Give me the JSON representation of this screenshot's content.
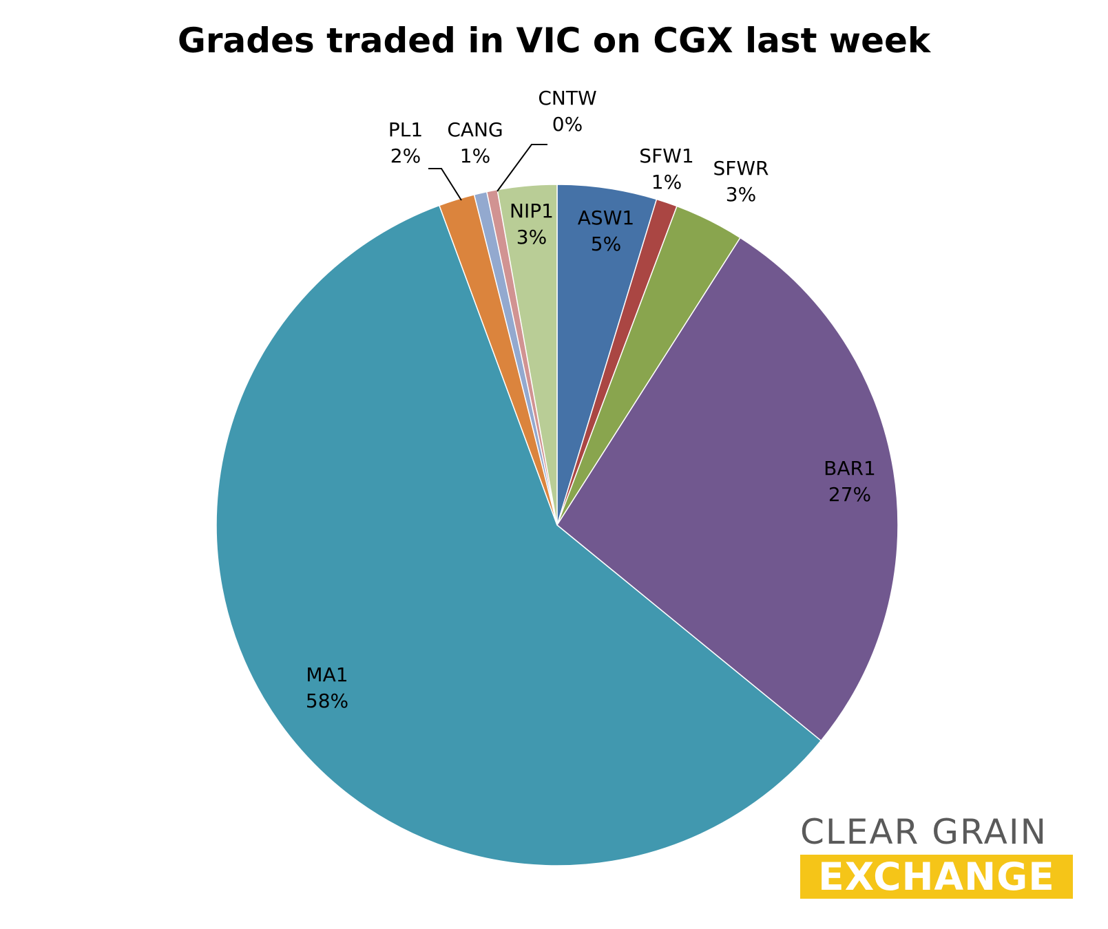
{
  "chart_data": {
    "type": "pie",
    "title": "Grades traded in VIC on CGX last week",
    "slices": [
      {
        "label": "ASW1",
        "pct_label": "5%",
        "value": 4.7,
        "color": "#4572a7"
      },
      {
        "label": "SFW1",
        "pct_label": "1%",
        "value": 1.0,
        "color": "#aa4643"
      },
      {
        "label": "SFWR",
        "pct_label": "3%",
        "value": 3.3,
        "color": "#89a54e"
      },
      {
        "label": "BAR1",
        "pct_label": "27%",
        "value": 26.8,
        "color": "#71588f"
      },
      {
        "label": "MA1",
        "pct_label": "58%",
        "value": 58.3,
        "color": "#4198af"
      },
      {
        "label": "PL1",
        "pct_label": "2%",
        "value": 1.7,
        "color": "#db843d"
      },
      {
        "label": "CANG",
        "pct_label": "1%",
        "value": 0.6,
        "color": "#93a9cf"
      },
      {
        "label": "CNTW",
        "pct_label": "0%",
        "value": 0.5,
        "color": "#d19392"
      },
      {
        "label": "NIP1",
        "pct_label": "3%",
        "value": 2.8,
        "color": "#b9cd96"
      }
    ]
  },
  "logo": {
    "line1": "CLEAR GRAIN",
    "line2": "EXCHANGE"
  }
}
